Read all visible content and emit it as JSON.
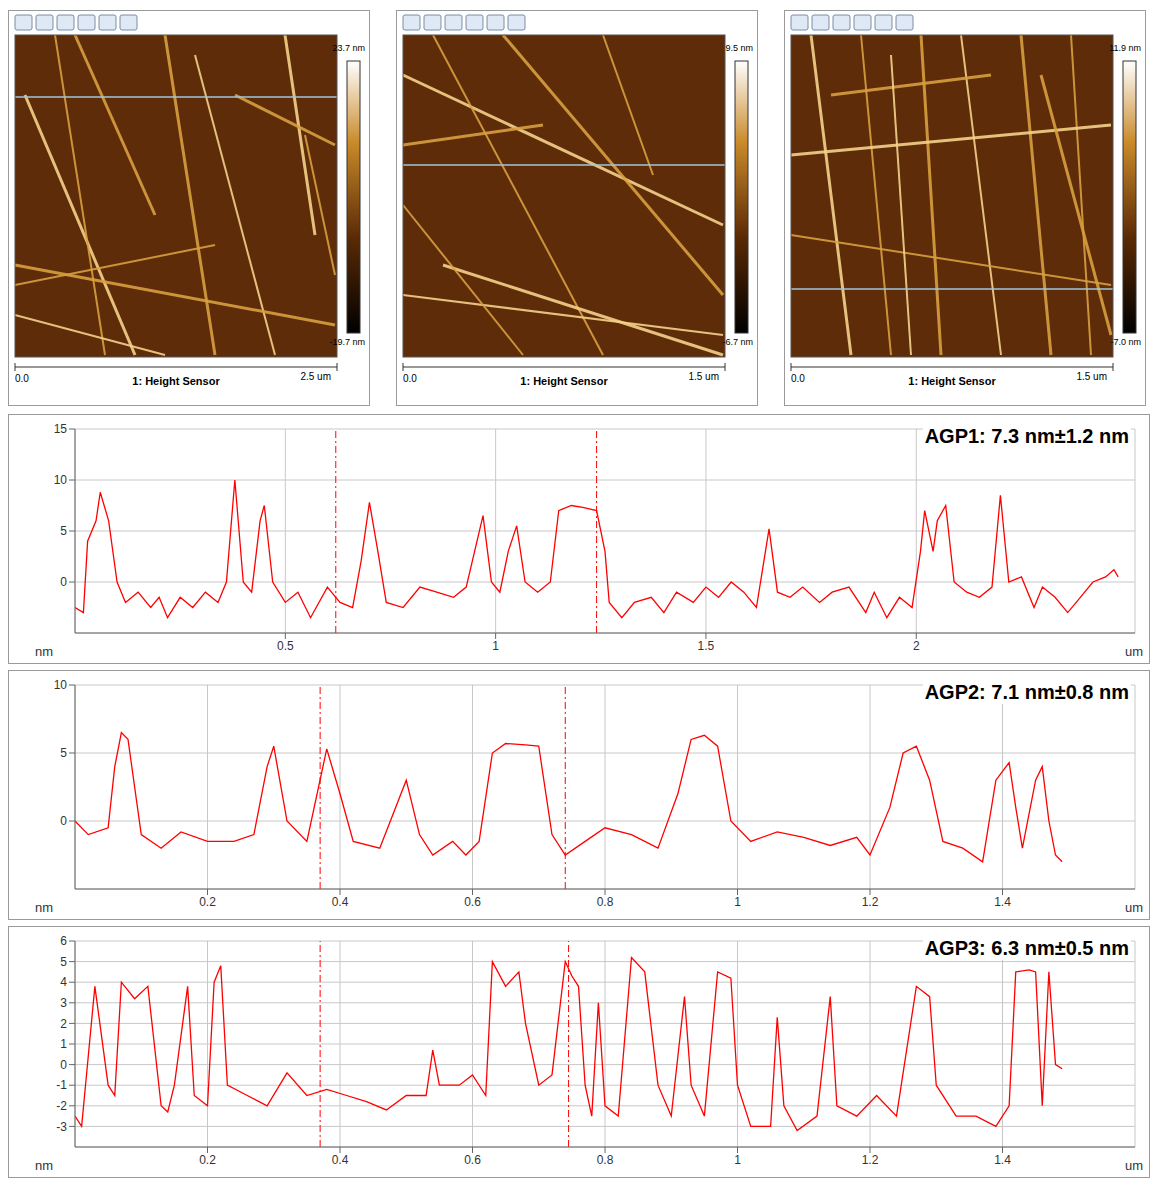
{
  "panels": [
    {
      "scale_start": "0.0",
      "scale_end": "2.5 um",
      "channel": "1: Height Sensor",
      "colorbar_max": "23.7 nm",
      "colorbar_min": "-19.7 nm"
    },
    {
      "scale_start": "0.0",
      "scale_end": "1.5 um",
      "channel": "1: Height Sensor",
      "colorbar_max": "9.5 nm",
      "colorbar_min": "-6.7 nm"
    },
    {
      "scale_start": "0.0",
      "scale_end": "1.5 um",
      "channel": "1: Height Sensor",
      "colorbar_max": "11.9 nm",
      "colorbar_min": "-7.0 nm"
    }
  ],
  "chart_data": [
    {
      "type": "line",
      "annotation": "AGP1: 7.3 nm±1.2 nm",
      "x_label": "um",
      "y_label": "nm",
      "color": "#ff0000",
      "grid": true,
      "xlim": [
        0,
        2.52
      ],
      "xticks": [
        0.5,
        1,
        1.5,
        2
      ],
      "ylim": [
        -5,
        15
      ],
      "yticks": [
        0,
        5,
        10,
        15
      ],
      "cursor_x": [
        0.62,
        1.24
      ],
      "x": [
        0,
        0.02,
        0.03,
        0.05,
        0.06,
        0.08,
        0.1,
        0.12,
        0.15,
        0.18,
        0.2,
        0.22,
        0.25,
        0.28,
        0.31,
        0.34,
        0.36,
        0.38,
        0.4,
        0.42,
        0.44,
        0.45,
        0.47,
        0.5,
        0.53,
        0.56,
        0.6,
        0.63,
        0.66,
        0.68,
        0.7,
        0.72,
        0.74,
        0.78,
        0.82,
        0.86,
        0.9,
        0.93,
        0.95,
        0.97,
        0.99,
        1.01,
        1.03,
        1.05,
        1.07,
        1.1,
        1.13,
        1.15,
        1.18,
        1.21,
        1.24,
        1.26,
        1.27,
        1.3,
        1.33,
        1.37,
        1.4,
        1.43,
        1.47,
        1.5,
        1.53,
        1.56,
        1.59,
        1.62,
        1.65,
        1.67,
        1.7,
        1.73,
        1.77,
        1.8,
        1.84,
        1.88,
        1.9,
        1.93,
        1.96,
        1.99,
        2.01,
        2.02,
        2.04,
        2.05,
        2.07,
        2.09,
        2.12,
        2.15,
        2.18,
        2.2,
        2.22,
        2.25,
        2.28,
        2.3,
        2.33,
        2.36,
        2.39,
        2.42,
        2.45,
        2.47,
        2.48
      ],
      "values": [
        -2.5,
        -3,
        4,
        6,
        8.8,
        6,
        0,
        -2,
        -1,
        -2.5,
        -1.5,
        -3.5,
        -1.5,
        -2.5,
        -1,
        -2,
        0,
        10,
        0,
        -1,
        6,
        7.5,
        0,
        -2,
        -1,
        -3.5,
        -0.5,
        -2,
        -2.5,
        2,
        7.8,
        3,
        -2,
        -2.5,
        -0.5,
        -1,
        -1.5,
        -0.5,
        3,
        6.5,
        0,
        -1,
        3,
        5.5,
        0,
        -1,
        0,
        7,
        7.5,
        7.3,
        7,
        3,
        -2,
        -3.5,
        -2,
        -1.5,
        -3,
        -1,
        -2,
        -0.5,
        -1.5,
        0,
        -1,
        -2.5,
        5.2,
        -1,
        -1.5,
        -0.5,
        -2,
        -1,
        -0.5,
        -3,
        -1,
        -3.5,
        -1.5,
        -2.5,
        3,
        7,
        3,
        6,
        7.5,
        0,
        -1,
        -1.5,
        -0.5,
        8.5,
        0,
        0.5,
        -2.5,
        -0.5,
        -1.5,
        -3,
        -1.5,
        0,
        0.5,
        1.2,
        0.5
      ]
    },
    {
      "type": "line",
      "annotation": "AGP2: 7.1 nm±0.8 nm",
      "x_label": "um",
      "y_label": "nm",
      "color": "#ff0000",
      "grid": true,
      "xlim": [
        0,
        1.6
      ],
      "xticks": [
        0.2,
        0.4,
        0.6,
        0.8,
        1,
        1.2,
        1.4
      ],
      "ylim": [
        -5,
        10
      ],
      "yticks": [
        0,
        5,
        10
      ],
      "cursor_x": [
        0.37,
        0.74
      ],
      "x": [
        0,
        0.02,
        0.05,
        0.06,
        0.07,
        0.08,
        0.1,
        0.13,
        0.16,
        0.2,
        0.24,
        0.27,
        0.29,
        0.3,
        0.32,
        0.35,
        0.38,
        0.4,
        0.42,
        0.46,
        0.48,
        0.5,
        0.52,
        0.54,
        0.57,
        0.59,
        0.61,
        0.63,
        0.65,
        0.68,
        0.7,
        0.72,
        0.74,
        0.77,
        0.8,
        0.84,
        0.88,
        0.91,
        0.93,
        0.95,
        0.97,
        0.99,
        1.02,
        1.06,
        1.1,
        1.14,
        1.18,
        1.2,
        1.23,
        1.25,
        1.27,
        1.29,
        1.31,
        1.34,
        1.37,
        1.39,
        1.41,
        1.42,
        1.43,
        1.45,
        1.46,
        1.47,
        1.48,
        1.49
      ],
      "values": [
        0,
        -1,
        -0.5,
        4,
        6.5,
        6,
        -1,
        -2,
        -0.8,
        -1.5,
        -1.5,
        -1,
        4,
        5.5,
        0,
        -1.5,
        5.3,
        2,
        -1.5,
        -2,
        0.5,
        3,
        -1,
        -2.5,
        -1.5,
        -2.5,
        -1.5,
        5,
        5.7,
        5.6,
        5.5,
        -1,
        -2.5,
        -1.5,
        -0.5,
        -1,
        -2,
        2,
        6,
        6.3,
        5.5,
        0,
        -1.5,
        -0.8,
        -1.2,
        -1.8,
        -1.2,
        -2.5,
        1,
        5,
        5.5,
        3,
        -1.5,
        -2,
        -3,
        3,
        4.3,
        1,
        -2,
        3,
        4,
        0,
        -2.5,
        -3
      ]
    },
    {
      "type": "line",
      "annotation": "AGP3: 6.3 nm±0.5 nm",
      "x_label": "um",
      "y_label": "nm",
      "color": "#ff0000",
      "grid": true,
      "xlim": [
        0,
        1.6
      ],
      "xticks": [
        0.2,
        0.4,
        0.6,
        0.8,
        1,
        1.2,
        1.4
      ],
      "ylim": [
        -4,
        6
      ],
      "yticks": [
        -3,
        -2,
        -1,
        0,
        1,
        2,
        3,
        4,
        5,
        6
      ],
      "cursor_x": [
        0.37,
        0.745
      ],
      "x": [
        0,
        0.01,
        0.03,
        0.05,
        0.06,
        0.07,
        0.09,
        0.11,
        0.13,
        0.14,
        0.15,
        0.17,
        0.18,
        0.2,
        0.21,
        0.22,
        0.23,
        0.26,
        0.29,
        0.32,
        0.35,
        0.38,
        0.41,
        0.44,
        0.47,
        0.5,
        0.53,
        0.54,
        0.55,
        0.58,
        0.6,
        0.62,
        0.63,
        0.65,
        0.67,
        0.68,
        0.7,
        0.72,
        0.74,
        0.75,
        0.76,
        0.77,
        0.78,
        0.79,
        0.8,
        0.82,
        0.84,
        0.86,
        0.88,
        0.9,
        0.92,
        0.93,
        0.95,
        0.97,
        0.99,
        1.0,
        1.02,
        1.05,
        1.06,
        1.07,
        1.09,
        1.12,
        1.14,
        1.15,
        1.18,
        1.21,
        1.24,
        1.27,
        1.29,
        1.3,
        1.33,
        1.36,
        1.39,
        1.41,
        1.42,
        1.44,
        1.45,
        1.46,
        1.47,
        1.48,
        1.49
      ],
      "values": [
        -2.5,
        -3,
        3.8,
        -1,
        -1.5,
        4,
        3.2,
        3.8,
        -2,
        -2.3,
        -1,
        3.8,
        -1.5,
        -2,
        4,
        4.8,
        -1,
        -1.5,
        -2,
        -0.4,
        -1.5,
        -1.2,
        -1.5,
        -1.8,
        -2.2,
        -1.5,
        -1.5,
        0.7,
        -1,
        -1,
        -0.5,
        -1.5,
        5,
        3.8,
        4.5,
        2,
        -1,
        -0.5,
        5,
        4.3,
        3.8,
        -1,
        -2.5,
        3,
        -2,
        -2.5,
        5.2,
        4.5,
        -1,
        -2.5,
        3.3,
        -1,
        -2.5,
        4.5,
        4.2,
        -1,
        -3,
        -3,
        2.3,
        -2,
        -3.2,
        -2.5,
        3.3,
        -2,
        -2.5,
        -1.5,
        -2.5,
        3.8,
        3.3,
        -1,
        -2.5,
        -2.5,
        -3,
        -2,
        4.5,
        4.6,
        4.5,
        -2,
        4.5,
        0,
        -0.2
      ]
    }
  ]
}
